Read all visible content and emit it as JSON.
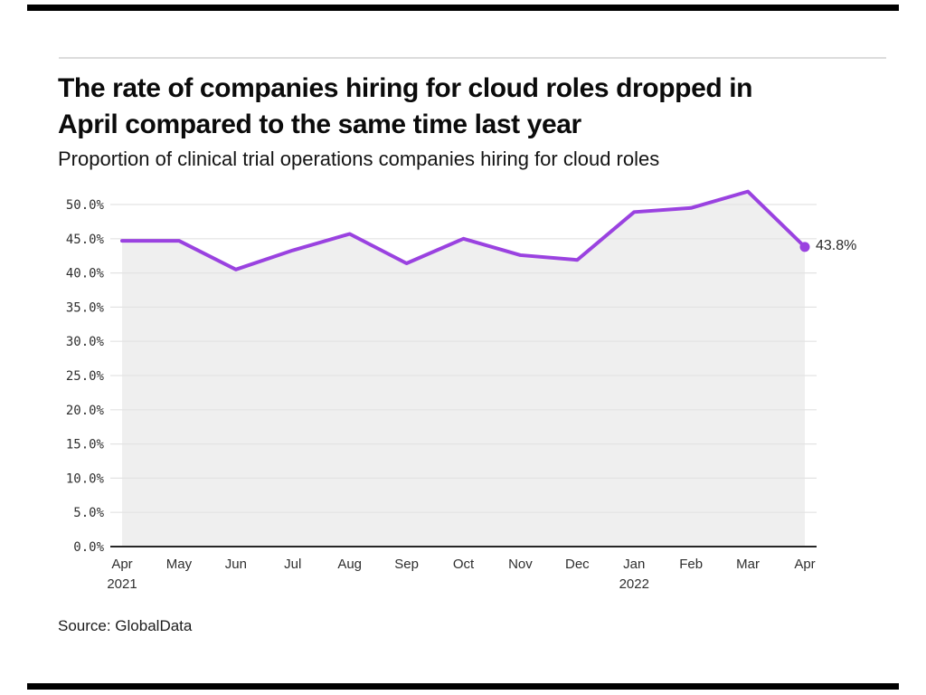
{
  "header": {
    "title_lines": [
      "The rate of companies hiring for cloud roles dropped in",
      "April compared to the same time last year"
    ],
    "subtitle": "Proportion of clinical trial operations companies hiring for cloud roles"
  },
  "footer": {
    "source": "Source: GlobalData"
  },
  "chart_data": {
    "type": "line",
    "title": "The rate of companies hiring for cloud roles dropped in April compared to the same time last year",
    "subtitle": "Proportion of clinical trial operations companies hiring for cloud roles",
    "x_labels": [
      "Apr",
      "May",
      "Jun",
      "Jul",
      "Aug",
      "Sep",
      "Oct",
      "Nov",
      "Dec",
      "Jan",
      "Feb",
      "Mar",
      "Apr"
    ],
    "x_year_labels": [
      {
        "index": 0,
        "text": "2021"
      },
      {
        "index": 9,
        "text": "2022"
      }
    ],
    "series": [
      {
        "name": "Proportion of clinical trial operations companies hiring for cloud roles",
        "values": [
          44.7,
          44.7,
          40.5,
          43.3,
          45.7,
          41.4,
          45.0,
          42.6,
          41.9,
          48.9,
          49.5,
          51.9,
          43.8
        ]
      }
    ],
    "ytick_labels": [
      "0.0%",
      "5.0%",
      "10.0%",
      "15.0%",
      "20.0%",
      "25.0%",
      "30.0%",
      "35.0%",
      "40.0%",
      "45.0%",
      "50.0%"
    ],
    "ylim": [
      0,
      50
    ],
    "grid": true,
    "legend": "none",
    "end_label": "43.8%",
    "line_color": "#9a42e0",
    "marker_color": "#9a42e0",
    "fill_color": "#efefef",
    "grid_color": "#e3e3e3",
    "axis_color": "#262626",
    "tick_text_color": "#2e2e2e"
  }
}
